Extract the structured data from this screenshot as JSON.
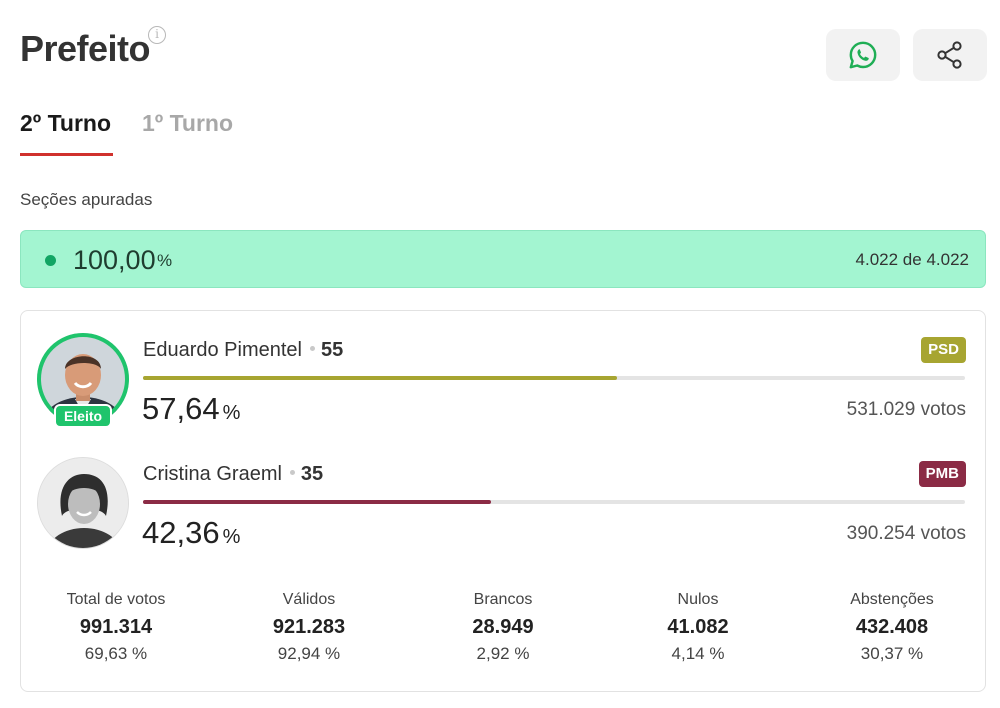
{
  "header": {
    "title": "Prefeito",
    "info_icon": "info-icon",
    "whatsapp_icon": "whatsapp-icon",
    "share_icon": "share-icon"
  },
  "tabs": [
    {
      "label": "2º Turno",
      "active": true
    },
    {
      "label": "1º Turno",
      "active": false
    }
  ],
  "secoes": {
    "label": "Seções apuradas",
    "percent": "100,00",
    "percent_symbol": "%",
    "count": "4.022 de 4.022",
    "progress_fraction": 1.0
  },
  "candidates": [
    {
      "name": "Eduardo Pimentel",
      "number": "55",
      "party": "PSD",
      "party_color": "#a7a531",
      "percent": "57,64",
      "percent_symbol": "%",
      "share": 0.5764,
      "votes": "531.029 votos",
      "elected_label": "Eleito",
      "elected": true
    },
    {
      "name": "Cristina Graeml",
      "number": "35",
      "party": "PMB",
      "party_color": "#8b2b45",
      "percent": "42,36",
      "percent_symbol": "%",
      "share": 0.4236,
      "votes": "390.254 votos",
      "elected": false
    }
  ],
  "stats": [
    {
      "label": "Total de votos",
      "value": "991.314",
      "percent": "69,63 %"
    },
    {
      "label": "Válidos",
      "value": "921.283",
      "percent": "92,94 %"
    },
    {
      "label": "Brancos",
      "value": "28.949",
      "percent": "2,92 %"
    },
    {
      "label": "Nulos",
      "value": "41.082",
      "percent": "4,14 %"
    },
    {
      "label": "Abstenções",
      "value": "432.408",
      "percent": "30,37 %"
    }
  ],
  "colors": {
    "accent_red": "#d0312d",
    "progress_bg": "#a3f5d1",
    "elected_green": "#1fc46c"
  }
}
